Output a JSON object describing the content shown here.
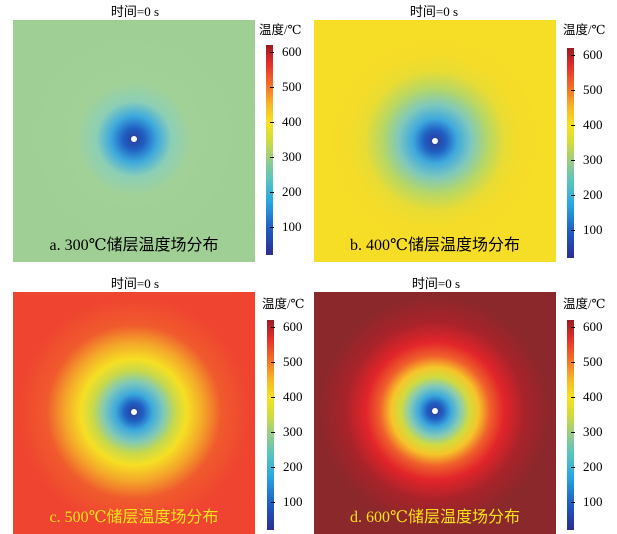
{
  "chart_data": [
    {
      "type": "heatmap",
      "title": "时间=0 s",
      "caption": "a. 300℃储层温度场分布",
      "colorbar_title": "温度/℃",
      "colorbar_ticks": [
        100,
        200,
        300,
        400,
        500,
        600
      ],
      "colorbar_range": [
        20,
        620
      ],
      "reservoir_temperature": 300,
      "caption_color": "#000000"
    },
    {
      "type": "heatmap",
      "title": "时间=0 s",
      "caption": "b. 400℃储层温度场分布",
      "colorbar_title": "温度/℃",
      "colorbar_ticks": [
        100,
        200,
        300,
        400,
        500,
        600
      ],
      "colorbar_range": [
        20,
        620
      ],
      "reservoir_temperature": 400,
      "caption_color": "#000000"
    },
    {
      "type": "heatmap",
      "title": "时间=0 s",
      "caption": "c. 500℃储层温度场分布",
      "colorbar_title": "温度/℃",
      "colorbar_ticks": [
        100,
        200,
        300,
        400,
        500,
        600
      ],
      "colorbar_range": [
        20,
        620
      ],
      "reservoir_temperature": 500,
      "caption_color": "#f5e21c"
    },
    {
      "type": "heatmap",
      "title": "时间=0 s",
      "caption": "d. 600℃储层温度场分布",
      "colorbar_title": "温度/℃",
      "colorbar_ticks": [
        100,
        200,
        300,
        400,
        500,
        600
      ],
      "colorbar_range": [
        20,
        620
      ],
      "reservoir_temperature": 600,
      "caption_color": "#f5e21c"
    }
  ],
  "colors": {
    "300": "#9fcf95",
    "400": "#f6dd26",
    "500": "#ef4530",
    "600": "#8b282b",
    "borehole": "#ffffff"
  }
}
